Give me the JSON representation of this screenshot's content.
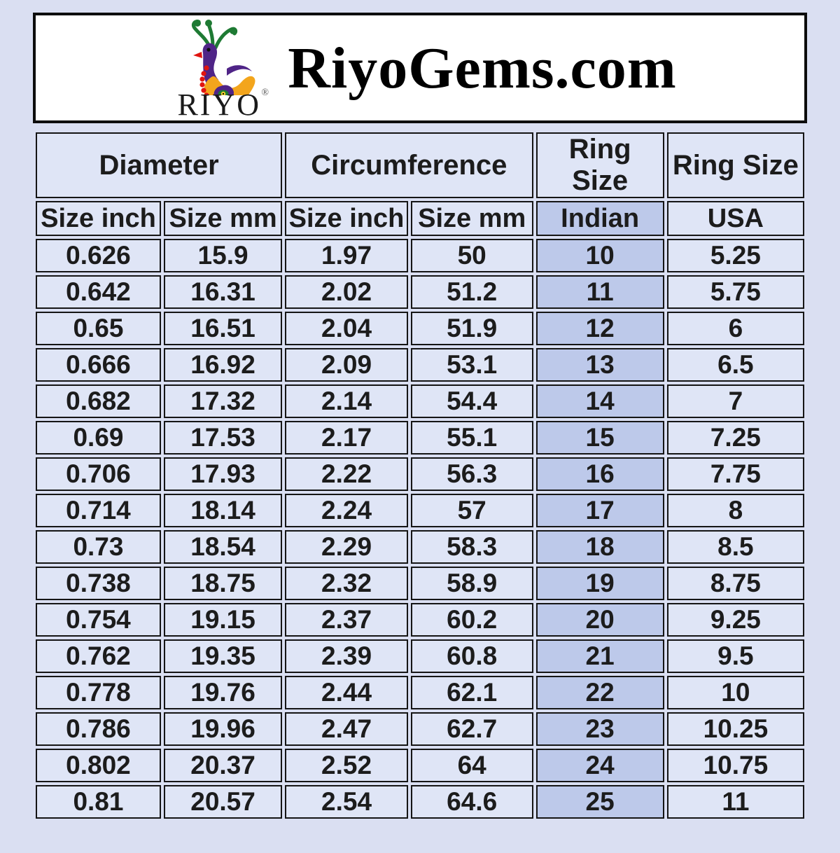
{
  "header": {
    "title": "RiyoGems.com",
    "logo_text": "RIYO",
    "registered_mark": "®"
  },
  "chart_data": {
    "type": "table",
    "group_headers": [
      {
        "label": "Diameter",
        "colspan": 2
      },
      {
        "label": "Circumference",
        "colspan": 2
      },
      {
        "label": "Ring Size",
        "colspan": 1
      },
      {
        "label": "Ring Size",
        "colspan": 1
      }
    ],
    "column_headers": [
      "Size inch",
      "Size mm",
      "Size inch",
      "Size mm",
      "Indian",
      "USA"
    ],
    "rows": [
      [
        "0.626",
        "15.9",
        "1.97",
        "50",
        "10",
        "5.25"
      ],
      [
        "0.642",
        "16.31",
        "2.02",
        "51.2",
        "11",
        "5.75"
      ],
      [
        "0.65",
        "16.51",
        "2.04",
        "51.9",
        "12",
        "6"
      ],
      [
        "0.666",
        "16.92",
        "2.09",
        "53.1",
        "13",
        "6.5"
      ],
      [
        "0.682",
        "17.32",
        "2.14",
        "54.4",
        "14",
        "7"
      ],
      [
        "0.69",
        "17.53",
        "2.17",
        "55.1",
        "15",
        "7.25"
      ],
      [
        "0.706",
        "17.93",
        "2.22",
        "56.3",
        "16",
        "7.75"
      ],
      [
        "0.714",
        "18.14",
        "2.24",
        "57",
        "17",
        "8"
      ],
      [
        "0.73",
        "18.54",
        "2.29",
        "58.3",
        "18",
        "8.5"
      ],
      [
        "0.738",
        "18.75",
        "2.32",
        "58.9",
        "19",
        "8.75"
      ],
      [
        "0.754",
        "19.15",
        "2.37",
        "60.2",
        "20",
        "9.25"
      ],
      [
        "0.762",
        "19.35",
        "2.39",
        "60.8",
        "21",
        "9.5"
      ],
      [
        "0.778",
        "19.76",
        "2.44",
        "62.1",
        "22",
        "10"
      ],
      [
        "0.786",
        "19.96",
        "2.47",
        "62.7",
        "23",
        "10.25"
      ],
      [
        "0.802",
        "20.37",
        "2.52",
        "64",
        "24",
        "10.75"
      ],
      [
        "0.81",
        "20.57",
        "2.54",
        "64.6",
        "25",
        "11"
      ]
    ],
    "highlighted_column_index": 4
  },
  "colors": {
    "page_background": "#dadff2",
    "cell_background": "#dfe5f6",
    "indian_column_background": "#bdc9ea",
    "cell_border": "#151515",
    "header_box_background": "#ffffff",
    "logo_green": "#1e7a33",
    "logo_purple": "#4f2487",
    "logo_orange": "#f3a51c",
    "logo_red": "#e01510",
    "logo_yellow": "#f2d32a"
  }
}
